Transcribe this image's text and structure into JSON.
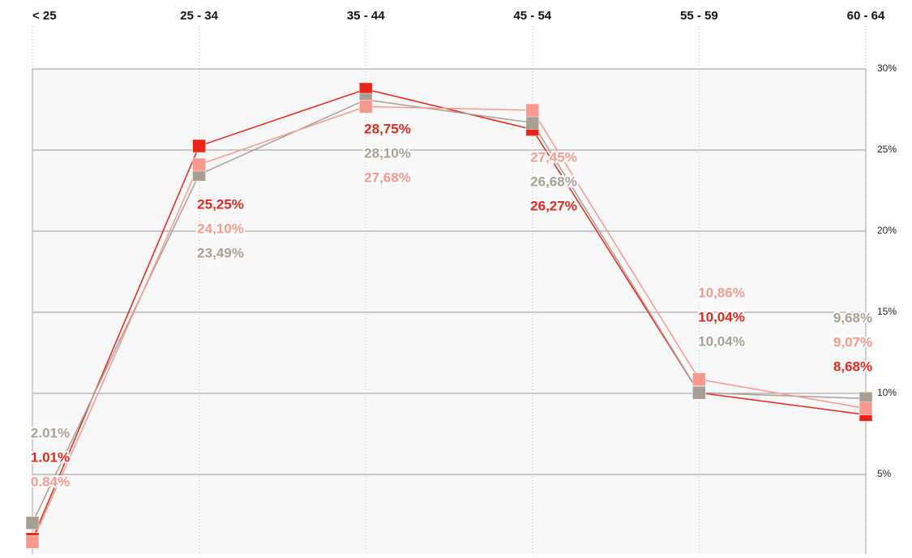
{
  "chart_data": {
    "type": "line",
    "categories": [
      "< 25",
      "25 - 34",
      "35 - 44",
      "45 - 54",
      "55 - 59",
      "60 - 64"
    ],
    "series": [
      {
        "name": null,
        "color": "#e8251a",
        "values": [
          1.01,
          25.25,
          28.75,
          26.27,
          10.04,
          8.68
        ],
        "value_labels": [
          "1.01%",
          "25,25%",
          "28,75%",
          "26,27%",
          "10,04%",
          "8,68%"
        ]
      },
      {
        "name": null,
        "color": "#a89f94",
        "values": [
          2.01,
          23.49,
          28.1,
          26.68,
          10.04,
          9.68
        ],
        "value_labels": [
          "2.01%",
          "23,49%",
          "28,10%",
          "26,68%",
          "10,04%",
          "9,68%"
        ]
      },
      {
        "name": null,
        "color": "#f7998e",
        "values": [
          0.84,
          24.1,
          27.68,
          27.45,
          10.86,
          9.07
        ],
        "value_labels": [
          "0.84%",
          "24,10%",
          "27,68%",
          "27,45%",
          "10,86%",
          "9,07%"
        ]
      }
    ],
    "ylim": [
      0,
      30
    ],
    "yticks": [
      {
        "value": 5,
        "label": "5%"
      },
      {
        "value": 10,
        "label": "10%"
      },
      {
        "value": 15,
        "label": "15%"
      },
      {
        "value": 20,
        "label": "20%"
      },
      {
        "value": 25,
        "label": "25%"
      },
      {
        "value": 30,
        "label": "30%"
      }
    ],
    "grid": true
  }
}
